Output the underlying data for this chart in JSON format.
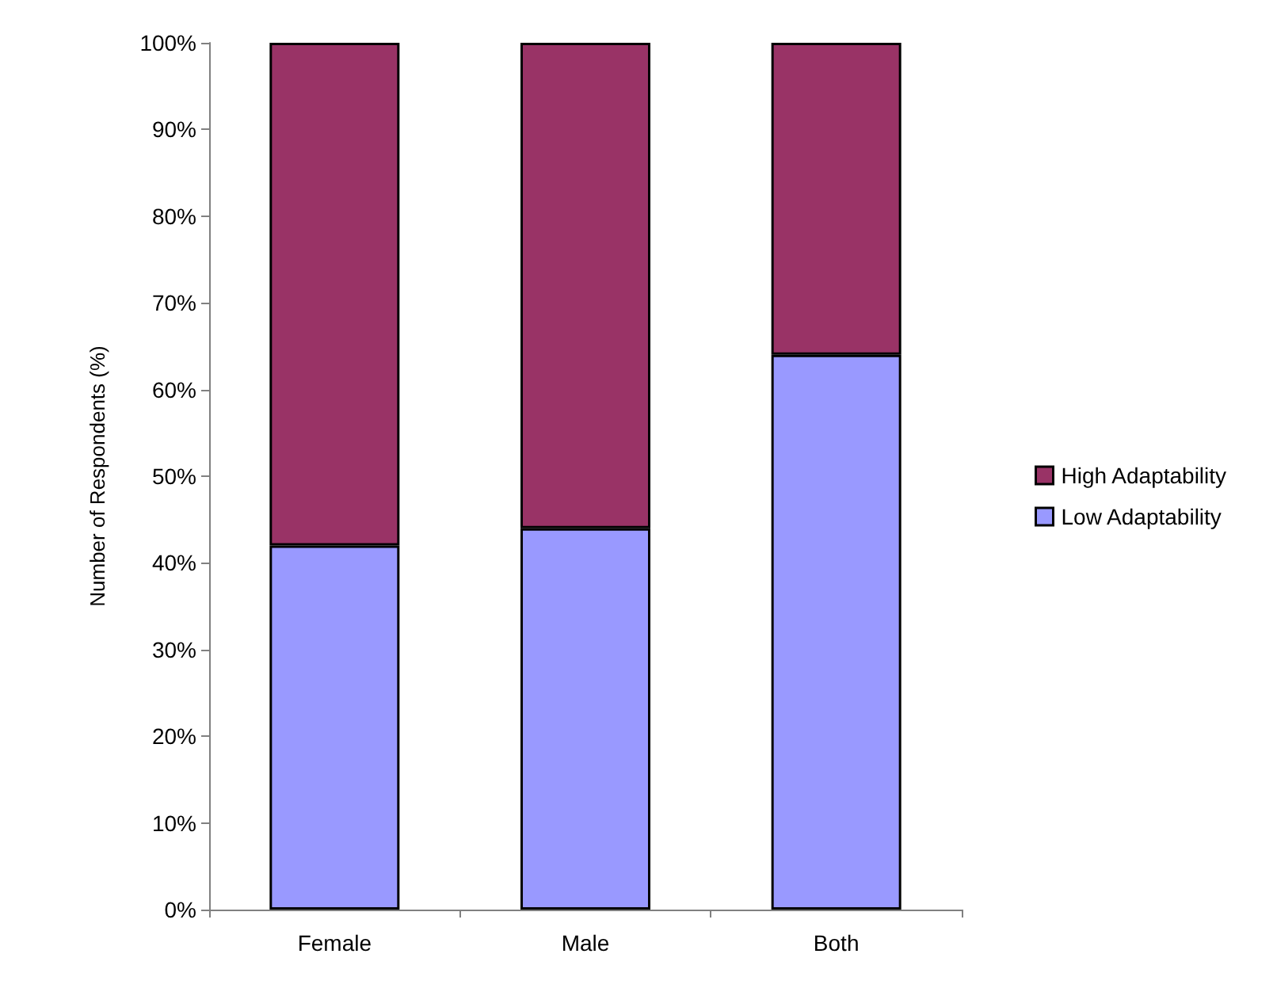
{
  "chart_data": {
    "type": "bar",
    "stacked": true,
    "ylabel": "Number of Respondents (%)",
    "categories": [
      "Female",
      "Male",
      "Both"
    ],
    "series": [
      {
        "name": "Low Adaptability",
        "color": "#9999ff",
        "values": [
          42,
          44,
          64
        ]
      },
      {
        "name": "High Adaptability",
        "color": "#993366",
        "values": [
          58,
          56,
          36
        ]
      }
    ],
    "ylim": [
      0,
      100
    ],
    "yticks": [
      {
        "value": 0,
        "label": "0%"
      },
      {
        "value": 10,
        "label": "10%"
      },
      {
        "value": 20,
        "label": "20%"
      },
      {
        "value": 30,
        "label": "30%"
      },
      {
        "value": 40,
        "label": "40%"
      },
      {
        "value": 50,
        "label": "50%"
      },
      {
        "value": 60,
        "label": "60%"
      },
      {
        "value": 70,
        "label": "70%"
      },
      {
        "value": 80,
        "label": "80%"
      },
      {
        "value": 90,
        "label": "90%"
      },
      {
        "value": 100,
        "label": "100%"
      }
    ],
    "grid": false,
    "legend": "right"
  }
}
